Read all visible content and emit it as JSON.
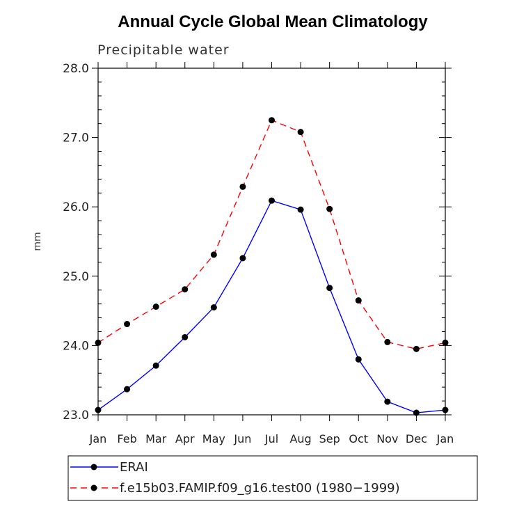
{
  "chart_data": {
    "type": "line",
    "title": "Annual Cycle Global Mean Climatology",
    "subtitle": "Precipitable water",
    "xlabel": "",
    "ylabel": "mm",
    "categories": [
      "Jan",
      "Feb",
      "Mar",
      "Apr",
      "May",
      "Jun",
      "Jul",
      "Aug",
      "Sep",
      "Oct",
      "Nov",
      "Dec",
      "Jan"
    ],
    "ylim": [
      23.0,
      28.0
    ],
    "yticks": [
      "23.0",
      "24.0",
      "25.0",
      "26.0",
      "27.0",
      "28.0"
    ],
    "grid": false,
    "legend_position": "bottom",
    "series": [
      {
        "name": "ERAI",
        "color": "#0000ff",
        "dash": "solid",
        "values": [
          23.07,
          23.37,
          23.71,
          24.12,
          24.55,
          25.26,
          26.09,
          25.96,
          24.83,
          23.8,
          23.19,
          23.03,
          23.07
        ]
      },
      {
        "name": "f.e15b03.FAMIP.f09_g16.test00 (1980−1999)",
        "color": "#ff0000",
        "dash": "dashed",
        "values": [
          24.04,
          24.31,
          24.56,
          24.81,
          25.31,
          26.29,
          27.25,
          27.08,
          25.97,
          24.65,
          24.05,
          23.95,
          24.04
        ]
      }
    ]
  }
}
